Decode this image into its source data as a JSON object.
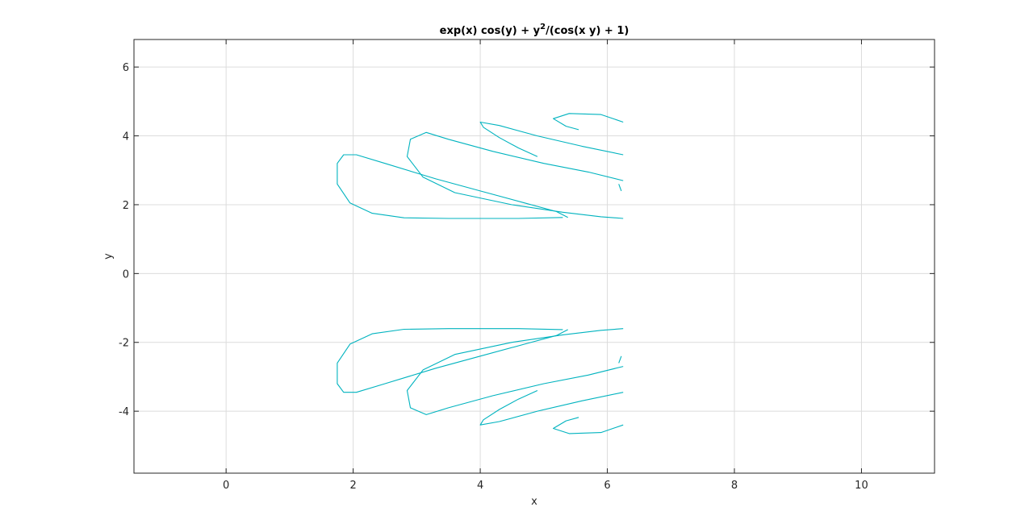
{
  "chart_data": {
    "type": "line",
    "title": {
      "main": "exp(x) cos(y) + y",
      "superscript": "2",
      "rest": "/(cos(x y) + 1)"
    },
    "xlabel": "x",
    "ylabel": "y",
    "xlim": [
      -1.45,
      11.15
    ],
    "ylim": [
      -5.8,
      6.8
    ],
    "xticks": [
      0,
      2,
      4,
      6,
      8,
      10
    ],
    "yticks": [
      -4,
      -2,
      0,
      2,
      4,
      6
    ],
    "grid": true,
    "colors": {
      "line": "#00b3bf",
      "grid": "#dcdcdc",
      "axes": "#262626"
    },
    "series": [
      {
        "points": [
          [
            5.3,
            1.63
          ],
          [
            4.6,
            1.6
          ],
          [
            3.5,
            1.6
          ],
          [
            2.8,
            1.62
          ],
          [
            2.3,
            1.75
          ],
          [
            1.95,
            2.05
          ],
          [
            1.75,
            2.6
          ],
          [
            1.75,
            3.2
          ],
          [
            1.85,
            3.45
          ],
          [
            2.05,
            3.45
          ],
          [
            2.5,
            3.2
          ],
          [
            3.3,
            2.75
          ],
          [
            4.0,
            2.4
          ],
          [
            4.7,
            2.05
          ],
          [
            5.2,
            1.8
          ],
          [
            5.38,
            1.63
          ]
        ]
      },
      {
        "points": [
          [
            6.25,
            1.6
          ],
          [
            5.9,
            1.65
          ],
          [
            5.3,
            1.78
          ],
          [
            4.5,
            2.0
          ],
          [
            3.6,
            2.35
          ],
          [
            3.1,
            2.8
          ],
          [
            2.85,
            3.4
          ],
          [
            2.9,
            3.9
          ],
          [
            3.15,
            4.1
          ],
          [
            3.5,
            3.9
          ],
          [
            4.2,
            3.55
          ],
          [
            5.0,
            3.2
          ],
          [
            5.7,
            2.95
          ],
          [
            6.25,
            2.7
          ]
        ]
      },
      {
        "points": [
          [
            6.25,
            3.45
          ],
          [
            5.6,
            3.7
          ],
          [
            4.9,
            4.0
          ],
          [
            4.3,
            4.3
          ],
          [
            4.0,
            4.4
          ],
          [
            4.05,
            4.25
          ],
          [
            4.3,
            3.95
          ],
          [
            4.6,
            3.65
          ],
          [
            4.9,
            3.4
          ]
        ]
      },
      {
        "points": [
          [
            6.25,
            4.4
          ],
          [
            5.9,
            4.62
          ],
          [
            5.4,
            4.65
          ],
          [
            5.15,
            4.5
          ],
          [
            5.35,
            4.28
          ],
          [
            5.55,
            4.18
          ]
        ]
      },
      {
        "points": [
          [
            6.18,
            2.6
          ],
          [
            6.22,
            2.4
          ]
        ]
      },
      {
        "points": [
          [
            5.3,
            -1.63
          ],
          [
            4.6,
            -1.6
          ],
          [
            3.5,
            -1.6
          ],
          [
            2.8,
            -1.62
          ],
          [
            2.3,
            -1.75
          ],
          [
            1.95,
            -2.05
          ],
          [
            1.75,
            -2.6
          ],
          [
            1.75,
            -3.2
          ],
          [
            1.85,
            -3.45
          ],
          [
            2.05,
            -3.45
          ],
          [
            2.5,
            -3.2
          ],
          [
            3.3,
            -2.75
          ],
          [
            4.0,
            -2.4
          ],
          [
            4.7,
            -2.05
          ],
          [
            5.2,
            -1.8
          ],
          [
            5.38,
            -1.63
          ]
        ]
      },
      {
        "points": [
          [
            6.25,
            -1.6
          ],
          [
            5.9,
            -1.65
          ],
          [
            5.3,
            -1.78
          ],
          [
            4.5,
            -2.0
          ],
          [
            3.6,
            -2.35
          ],
          [
            3.1,
            -2.8
          ],
          [
            2.85,
            -3.4
          ],
          [
            2.9,
            -3.9
          ],
          [
            3.15,
            -4.1
          ],
          [
            3.5,
            -3.9
          ],
          [
            4.2,
            -3.55
          ],
          [
            5.0,
            -3.2
          ],
          [
            5.7,
            -2.95
          ],
          [
            6.25,
            -2.7
          ]
        ]
      },
      {
        "points": [
          [
            6.25,
            -3.45
          ],
          [
            5.6,
            -3.7
          ],
          [
            4.9,
            -4.0
          ],
          [
            4.3,
            -4.3
          ],
          [
            4.0,
            -4.4
          ],
          [
            4.05,
            -4.25
          ],
          [
            4.3,
            -3.95
          ],
          [
            4.6,
            -3.65
          ],
          [
            4.9,
            -3.4
          ]
        ]
      },
      {
        "points": [
          [
            6.25,
            -4.4
          ],
          [
            5.9,
            -4.62
          ],
          [
            5.4,
            -4.65
          ],
          [
            5.15,
            -4.5
          ],
          [
            5.35,
            -4.28
          ],
          [
            5.55,
            -4.18
          ]
        ]
      },
      {
        "points": [
          [
            6.18,
            -2.6
          ],
          [
            6.22,
            -2.4
          ]
        ]
      }
    ]
  }
}
